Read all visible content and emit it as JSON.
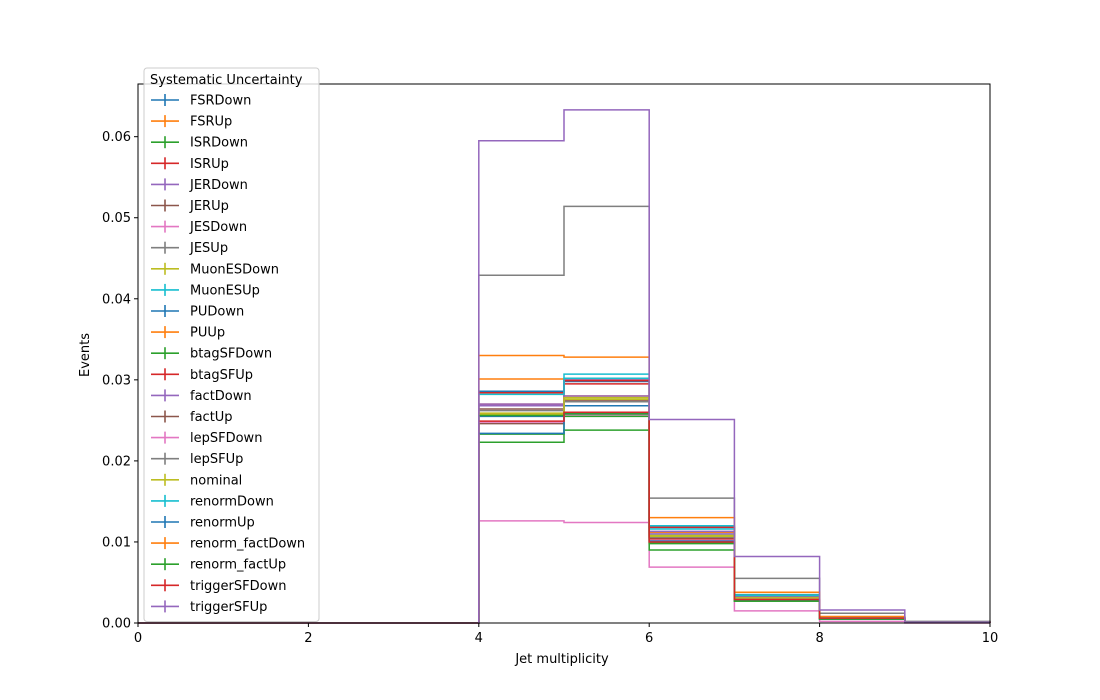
{
  "chart_data": {
    "type": "line",
    "xlabel": "Jet multiplicity",
    "ylabel": "Events",
    "xlim": [
      0,
      10
    ],
    "ylim": [
      0,
      0.0665
    ],
    "x_ticks": [
      0,
      2,
      4,
      6,
      8,
      10
    ],
    "y_ticks": [
      0.0,
      0.01,
      0.02,
      0.03,
      0.04,
      0.05,
      0.06
    ],
    "y_tick_labels": [
      "0.00",
      "0.01",
      "0.02",
      "0.03",
      "0.04",
      "0.05",
      "0.06"
    ],
    "bin_edges": [
      0,
      1,
      2,
      3,
      4,
      5,
      6,
      7,
      8,
      9,
      10
    ],
    "grid": false,
    "legend": {
      "title": "Systematic Uncertainty",
      "placement": "upper-left"
    },
    "series": [
      {
        "name": "FSRDown",
        "color": "#1f77b4",
        "values": [
          0,
          0,
          0,
          0,
          0.0255,
          0.0268,
          0.0108,
          0.003,
          0.0006,
          0.0001
        ]
      },
      {
        "name": "FSRUp",
        "color": "#ff7f0e",
        "values": [
          0,
          0,
          0,
          0,
          0.0258,
          0.028,
          0.0112,
          0.0035,
          0.0007,
          0.0001
        ]
      },
      {
        "name": "ISRDown",
        "color": "#2ca02c",
        "values": [
          0,
          0,
          0,
          0,
          0.0233,
          0.0255,
          0.0098,
          0.0029,
          0.0005,
          0.0001
        ]
      },
      {
        "name": "ISRUp",
        "color": "#d62728",
        "values": [
          0,
          0,
          0,
          0,
          0.027,
          0.0295,
          0.0104,
          0.003,
          0.0006,
          0.0001
        ]
      },
      {
        "name": "JERDown",
        "color": "#9467bd",
        "values": [
          0,
          0,
          0,
          0,
          0.0268,
          0.028,
          0.011,
          0.0031,
          0.0006,
          0.0001
        ]
      },
      {
        "name": "JERUp",
        "color": "#8c564b",
        "values": [
          0,
          0,
          0,
          0,
          0.0264,
          0.0275,
          0.0105,
          0.003,
          0.0006,
          0.0001
        ]
      },
      {
        "name": "JESDown",
        "color": "#e377c2",
        "values": [
          0,
          0,
          0,
          0,
          0.0126,
          0.0124,
          0.0069,
          0.0015,
          0.0002,
          0.0
        ]
      },
      {
        "name": "JESUp",
        "color": "#7f7f7f",
        "values": [
          0,
          0,
          0,
          0,
          0.0429,
          0.0514,
          0.0154,
          0.0055,
          0.0012,
          0.0002
        ]
      },
      {
        "name": "MuonESDown",
        "color": "#bcbd22",
        "values": [
          0,
          0,
          0,
          0,
          0.0259,
          0.0276,
          0.0108,
          0.0032,
          0.0006,
          0.0001
        ]
      },
      {
        "name": "MuonESUp",
        "color": "#17becf",
        "values": [
          0,
          0,
          0,
          0,
          0.0286,
          0.0307,
          0.012,
          0.0035,
          0.0007,
          0.0001
        ]
      },
      {
        "name": "PUDown",
        "color": "#1f77b4",
        "values": [
          0,
          0,
          0,
          0,
          0.0286,
          0.0298,
          0.0118,
          0.0033,
          0.0007,
          0.0001
        ]
      },
      {
        "name": "PUUp",
        "color": "#ff7f0e",
        "values": [
          0,
          0,
          0,
          0,
          0.0301,
          0.03,
          0.0106,
          0.0033,
          0.0007,
          0.0001
        ]
      },
      {
        "name": "btagSFDown",
        "color": "#2ca02c",
        "values": [
          0,
          0,
          0,
          0,
          0.0223,
          0.0238,
          0.009,
          0.0027,
          0.0005,
          0.0001
        ]
      },
      {
        "name": "btagSFUp",
        "color": "#d62728",
        "values": [
          0,
          0,
          0,
          0,
          0.0284,
          0.0299,
          0.0118,
          0.0034,
          0.0007,
          0.0001
        ]
      },
      {
        "name": "factDown",
        "color": "#9467bd",
        "values": [
          0,
          0,
          0,
          0,
          0.027,
          0.0301,
          0.0113,
          0.0032,
          0.0007,
          0.0001
        ]
      },
      {
        "name": "factUp",
        "color": "#8c564b",
        "values": [
          0,
          0,
          0,
          0,
          0.0246,
          0.0259,
          0.01,
          0.0029,
          0.0006,
          0.0001
        ]
      },
      {
        "name": "lepSFDown",
        "color": "#e377c2",
        "values": [
          0,
          0,
          0,
          0,
          0.0248,
          0.0257,
          0.0102,
          0.003,
          0.0006,
          0.0001
        ]
      },
      {
        "name": "lepSFUp",
        "color": "#7f7f7f",
        "values": [
          0,
          0,
          0,
          0,
          0.0262,
          0.0273,
          0.0106,
          0.0031,
          0.0006,
          0.0001
        ]
      },
      {
        "name": "nominal",
        "color": "#bcbd22",
        "values": [
          0,
          0,
          0,
          0,
          0.0257,
          0.0278,
          0.0107,
          0.0031,
          0.0006,
          0.0001
        ]
      },
      {
        "name": "renormDown",
        "color": "#17becf",
        "values": [
          0,
          0,
          0,
          0,
          0.0282,
          0.0302,
          0.0116,
          0.0034,
          0.0007,
          0.0001
        ]
      },
      {
        "name": "renormUp",
        "color": "#1f77b4",
        "values": [
          0,
          0,
          0,
          0,
          0.0234,
          0.0258,
          0.0101,
          0.0028,
          0.0005,
          0.0001
        ]
      },
      {
        "name": "renorm_factDown",
        "color": "#ff7f0e",
        "values": [
          0,
          0,
          0,
          0,
          0.033,
          0.0328,
          0.013,
          0.0038,
          0.0008,
          0.0001
        ]
      },
      {
        "name": "renorm_factUp",
        "color": "#2ca02c",
        "values": [
          0,
          0,
          0,
          0,
          0.0256,
          0.0258,
          0.0099,
          0.0027,
          0.0005,
          0.0001
        ]
      },
      {
        "name": "triggerSFDown",
        "color": "#d62728",
        "values": [
          0,
          0,
          0,
          0,
          0.0249,
          0.026,
          0.01,
          0.0029,
          0.0006,
          0.0001
        ]
      },
      {
        "name": "triggerSFUp",
        "color": "#9467bd",
        "values": [
          0,
          0,
          0,
          0,
          0.0595,
          0.0633,
          0.0251,
          0.0082,
          0.0016,
          0.0001
        ]
      }
    ]
  }
}
